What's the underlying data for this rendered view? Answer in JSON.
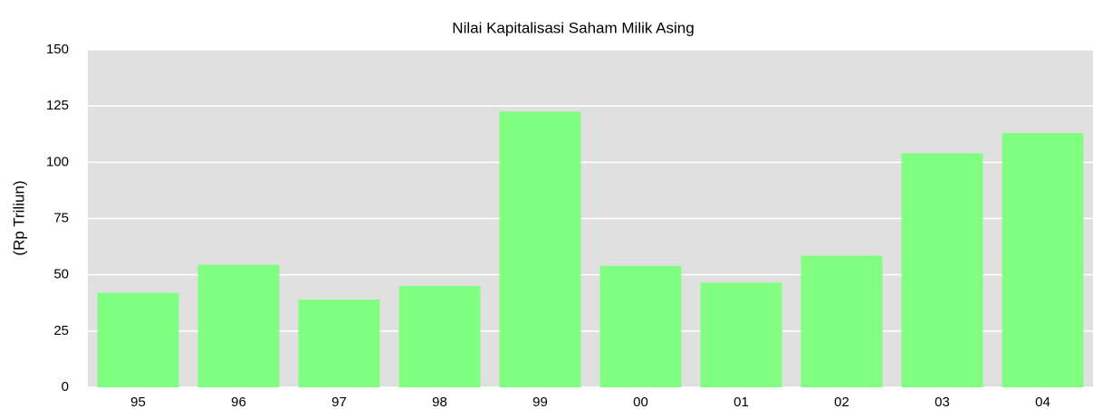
{
  "chart_data": {
    "type": "bar",
    "title": "Nilai Kapitalisasi Saham Milik Asing",
    "y_label": "(Rp Triliun)",
    "categories": [
      "95",
      "96",
      "97",
      "98",
      "99",
      "00",
      "01",
      "02",
      "03",
      "04"
    ],
    "values": [
      42,
      54.5,
      39,
      45,
      122.5,
      54,
      46.5,
      58.5,
      104,
      113
    ],
    "color": "#80ff80",
    "ylim": [
      0,
      150
    ],
    "yticks": [
      0,
      25,
      50,
      75,
      100,
      125,
      150
    ],
    "grid": true
  }
}
